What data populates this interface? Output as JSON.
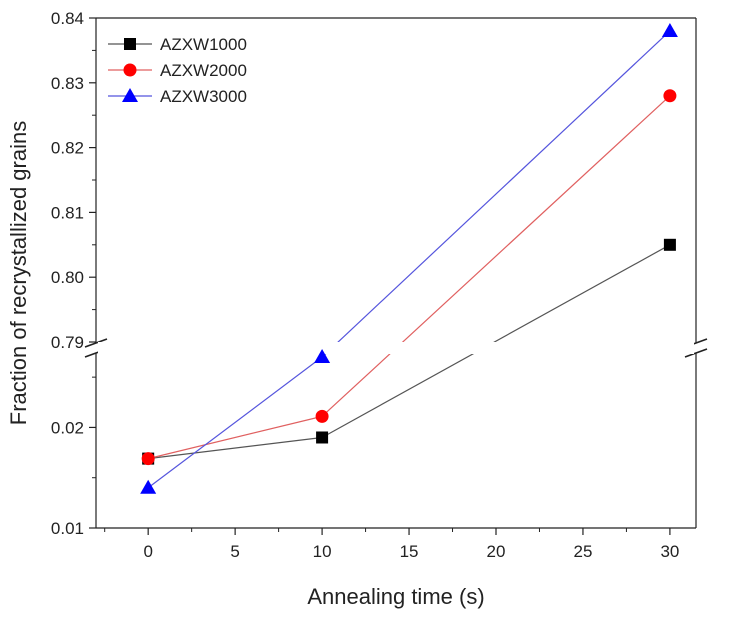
{
  "chart_data": {
    "type": "line",
    "xlabel": "Annealing time (s)",
    "ylabel": "Fraction of recrystallized grains",
    "x": [
      0,
      10,
      30
    ],
    "xlim": [
      -3,
      31.5
    ],
    "x_ticks": [
      "0",
      "5",
      "10",
      "15",
      "20",
      "25",
      "30"
    ],
    "y_break": {
      "lower_range": [
        0.01,
        0.0275
      ],
      "upper_range": [
        0.79,
        0.84
      ]
    },
    "y_ticks_upper": [
      "0.84",
      "0.83",
      "0.82",
      "0.81",
      "0.80",
      "0.79"
    ],
    "y_ticks_lower": [
      "0.02",
      "0.01"
    ],
    "legend_position": "top-left",
    "series": [
      {
        "name": "AZXW1000",
        "marker": "square",
        "color": "#000000",
        "line_color": "#555555",
        "values": [
          0.0169,
          0.019,
          0.805
        ]
      },
      {
        "name": "AZXW2000",
        "marker": "circle",
        "color": "#ff0000",
        "line_color": "#e06060",
        "values": [
          0.0169,
          0.0211,
          0.828
        ]
      },
      {
        "name": "AZXW3000",
        "marker": "triangle",
        "color": "#0000ff",
        "line_color": "#5555dd",
        "values": [
          0.014,
          0.027,
          0.838
        ]
      }
    ]
  }
}
